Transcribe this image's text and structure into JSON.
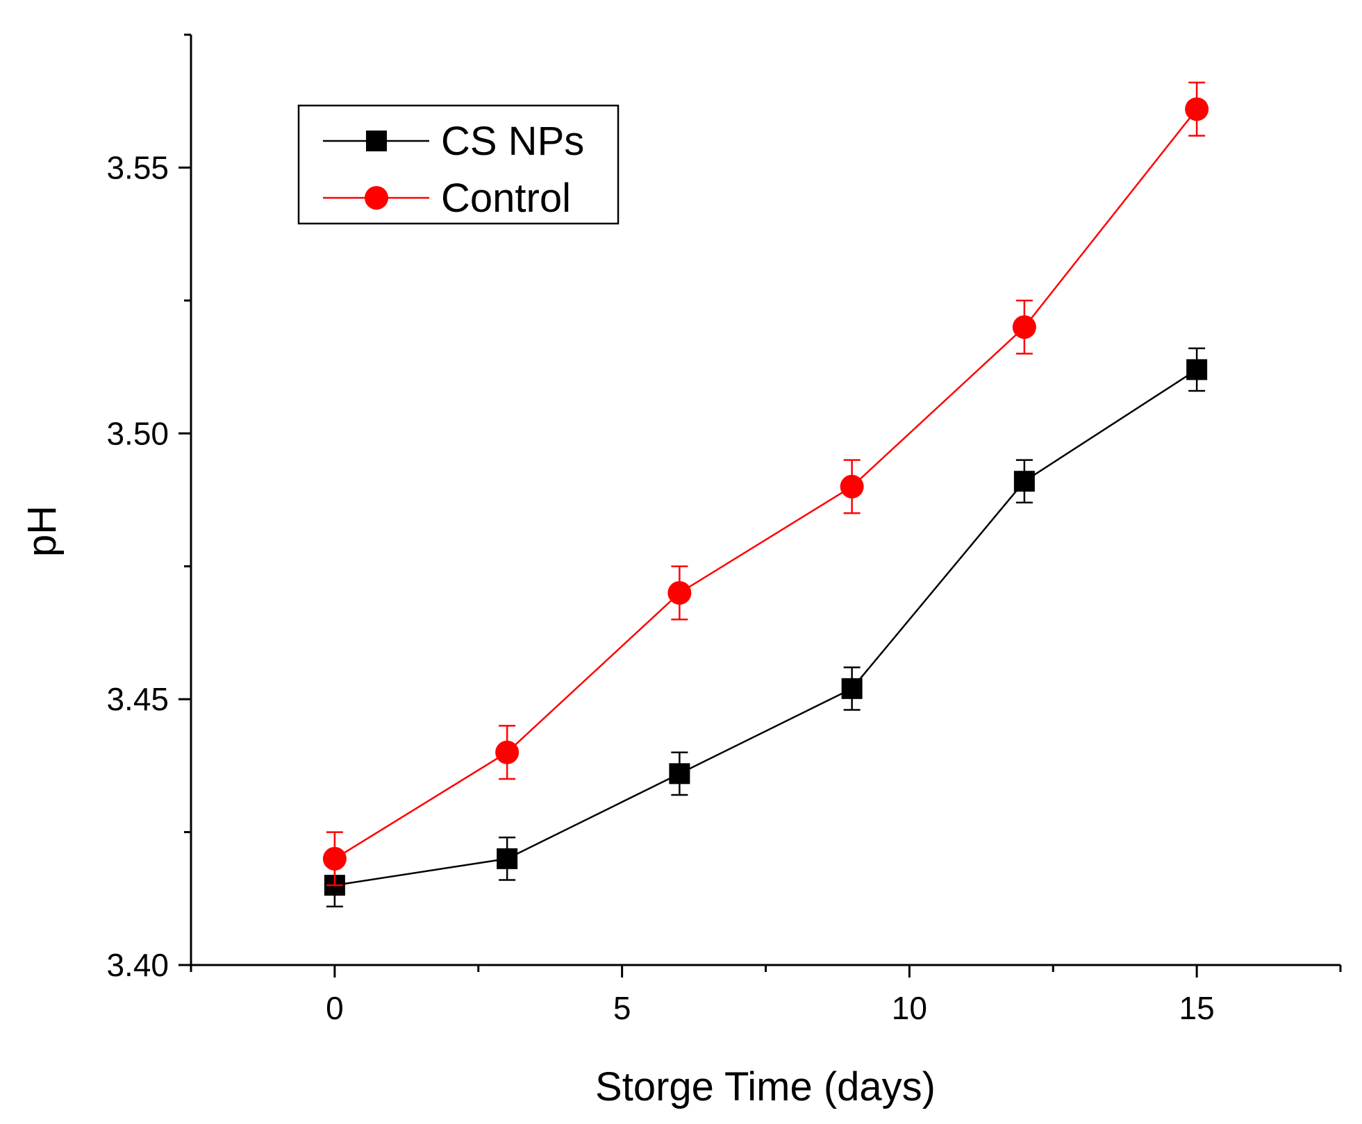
{
  "chart_data": {
    "type": "line",
    "title": "",
    "xlabel": "Storge Time (days)",
    "ylabel": "pH",
    "xlim": [
      -2.5,
      17.5
    ],
    "ylim": [
      3.4,
      3.575
    ],
    "x_ticks": [
      0,
      5,
      10,
      15
    ],
    "x_tick_labels": [
      "0",
      "5",
      "10",
      "15"
    ],
    "x_minor_ticks": [
      -2.5,
      2.5,
      7.5,
      12.5,
      17.5
    ],
    "y_ticks": [
      3.4,
      3.45,
      3.5,
      3.55
    ],
    "y_tick_labels": [
      "3.40",
      "3.45",
      "3.50",
      "3.55"
    ],
    "y_minor_ticks": [
      3.425,
      3.475,
      3.525,
      3.575
    ],
    "grid": false,
    "legend_position": "top-left",
    "x": [
      0,
      3,
      6,
      9,
      12,
      15
    ],
    "series": [
      {
        "name": "CS NPs",
        "color": "#000000",
        "marker": "square",
        "values": [
          3.415,
          3.42,
          3.436,
          3.452,
          3.491,
          3.512
        ],
        "errors": [
          0.004,
          0.004,
          0.004,
          0.004,
          0.004,
          0.004
        ]
      },
      {
        "name": "Control",
        "color": "#ff0000",
        "marker": "circle",
        "values": [
          3.42,
          3.44,
          3.47,
          3.49,
          3.52,
          3.561
        ],
        "errors": [
          0.005,
          0.005,
          0.005,
          0.005,
          0.005,
          0.005
        ]
      }
    ]
  }
}
